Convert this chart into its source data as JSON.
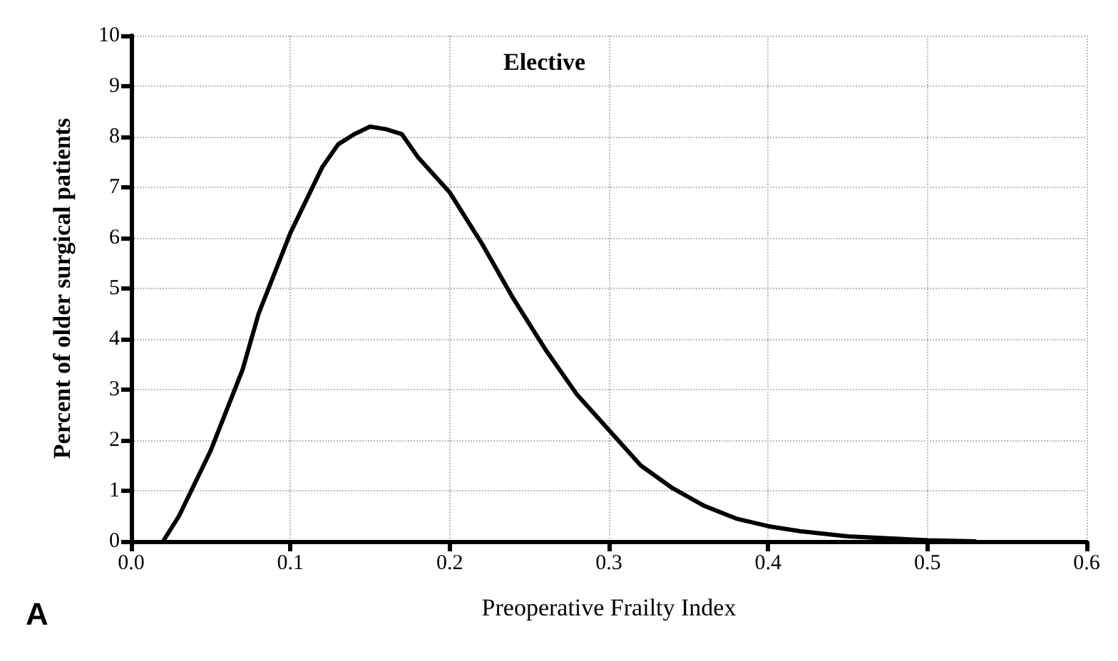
{
  "chart_data": {
    "type": "line",
    "title": "Elective",
    "xlabel": "Preoperative Frailty Index",
    "ylabel": "Percent of older surgical patients",
    "annotations": [
      "A"
    ],
    "x": [
      0.02,
      0.03,
      0.05,
      0.07,
      0.08,
      0.1,
      0.12,
      0.13,
      0.14,
      0.15,
      0.16,
      0.17,
      0.18,
      0.2,
      0.22,
      0.24,
      0.26,
      0.28,
      0.3,
      0.32,
      0.34,
      0.36,
      0.38,
      0.4,
      0.42,
      0.45,
      0.5,
      0.53
    ],
    "series": [
      {
        "color": "#000000",
        "values": [
          0,
          0.5,
          1.8,
          3.4,
          4.5,
          6.1,
          7.4,
          7.85,
          8.05,
          8.2,
          8.15,
          8.05,
          7.6,
          6.9,
          5.9,
          4.8,
          3.8,
          2.9,
          2.2,
          1.5,
          1.05,
          0.7,
          0.45,
          0.3,
          0.2,
          0.1,
          0.02,
          0
        ]
      }
    ],
    "xlim": [
      0,
      0.6
    ],
    "xticks": [
      {
        "value": 0,
        "label": "0.0"
      },
      {
        "value": 0.1,
        "label": "0.1"
      },
      {
        "value": 0.2,
        "label": "0.2"
      },
      {
        "value": 0.3,
        "label": "0.3"
      },
      {
        "value": 0.4,
        "label": "0.4"
      },
      {
        "value": 0.5,
        "label": "0.5"
      },
      {
        "value": 0.6,
        "label": "0.6"
      }
    ],
    "ylim": [
      0,
      10
    ],
    "yticks": [
      0,
      1,
      2,
      3,
      4,
      5,
      6,
      7,
      8,
      9,
      10
    ],
    "grid": true,
    "marker": "none",
    "line_style": "solid"
  }
}
